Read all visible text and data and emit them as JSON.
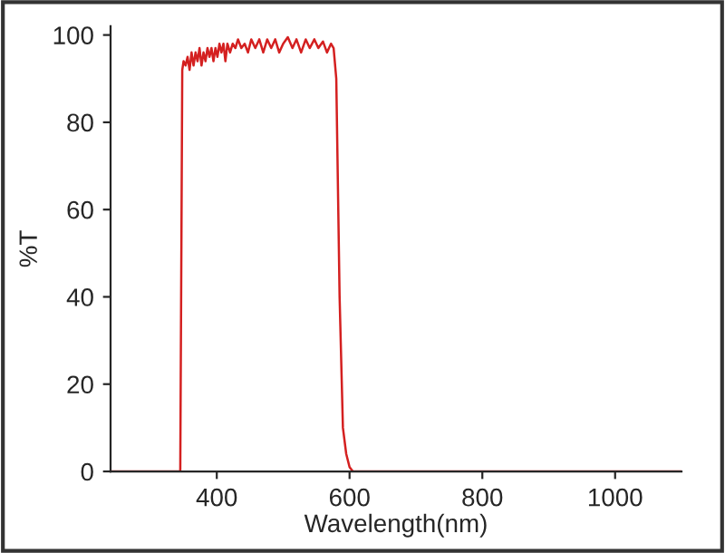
{
  "chart_data": {
    "type": "line",
    "xlabel": "Wavelength(nm)",
    "ylabel": "%T",
    "series": [
      {
        "color": "#d42020",
        "x": [
          240,
          345,
          348,
          350,
          353,
          356,
          359,
          362,
          365,
          368,
          371,
          374,
          377,
          380,
          383,
          386,
          389,
          392,
          395,
          398,
          401,
          404,
          407,
          410,
          413,
          416,
          420,
          424,
          428,
          432,
          437,
          442,
          447,
          452,
          458,
          464,
          470,
          476,
          482,
          488,
          494,
          500,
          507,
          514,
          520,
          527,
          534,
          540,
          547,
          553,
          560,
          566,
          572,
          576,
          580,
          585,
          590,
          595,
          600,
          605,
          1100
        ],
        "values": [
          0,
          0,
          92,
          94,
          93,
          95,
          92,
          96,
          93,
          96,
          94,
          97,
          93,
          96,
          94,
          97,
          95,
          97,
          94,
          97,
          95,
          98,
          96,
          98,
          94,
          98,
          96,
          98,
          97,
          99,
          97,
          98,
          96,
          99,
          97,
          99,
          96,
          99,
          97,
          99,
          96,
          98,
          99.5,
          97,
          99,
          96,
          99,
          97,
          99,
          97,
          98.5,
          96,
          98,
          97,
          90,
          40,
          10,
          4,
          1,
          0,
          0
        ]
      }
    ],
    "xlim": [
      240,
      1100
    ],
    "ylim": [
      0,
      102
    ],
    "xticks": [
      400,
      600,
      800,
      1000
    ],
    "yticks": [
      0,
      20,
      40,
      60,
      80,
      100
    ],
    "grid": false,
    "legend": false,
    "marker": "none",
    "line_style": "solid"
  }
}
